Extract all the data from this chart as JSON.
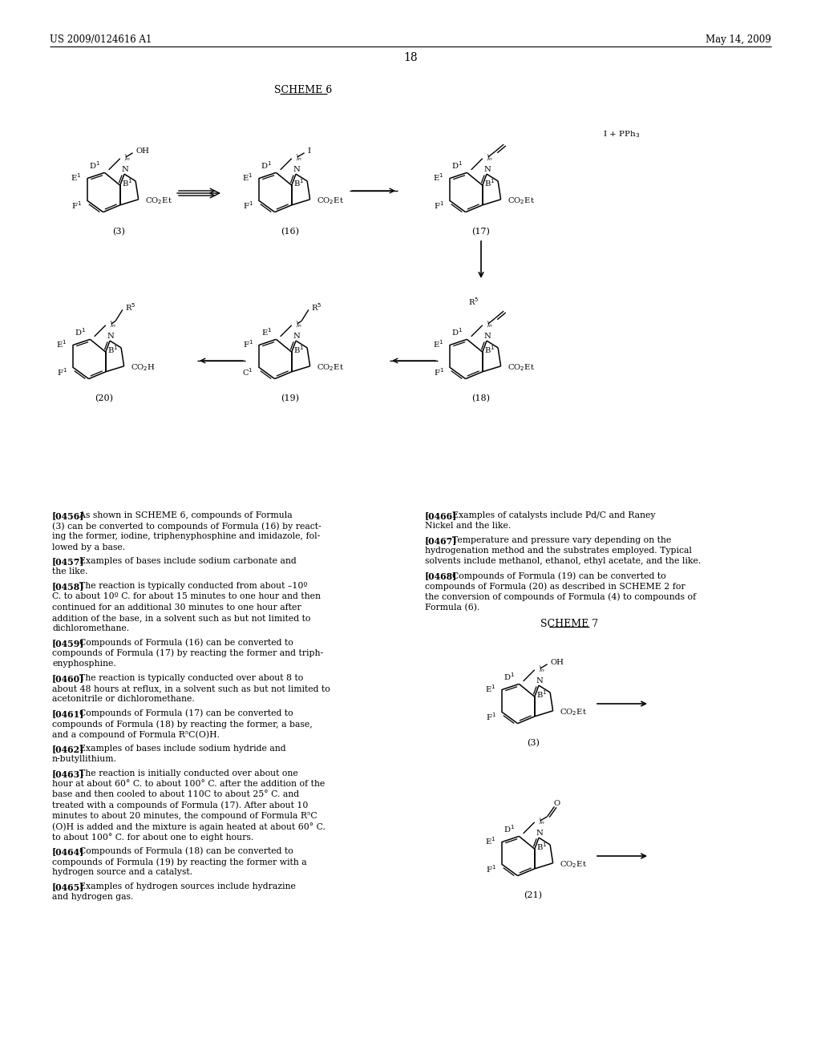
{
  "bg_color": "#ffffff",
  "header_left": "US 2009/0124616 A1",
  "header_right": "May 14, 2009",
  "page_num": "18",
  "scheme6_label": "SCHEME 6",
  "scheme7_label": "SCHEME 7",
  "fig_width": 10.24,
  "fig_height": 13.2,
  "dpi": 100,
  "left_col": [
    {
      "tag": "[0456]",
      "body": "  As shown in SCHEME 6, compounds of Formula\n(3) can be converted to compounds of Formula (16) by react-\ning the former, iodine, triphenyphosphine and imidazole, fol-\nlowed by a base."
    },
    {
      "tag": "[0457]",
      "body": "  Examples of bases include sodium carbonate and\nthe like."
    },
    {
      "tag": "[0458]",
      "body": "  The reaction is typically conducted from about –10º\nC. to about 10º C. for about 15 minutes to one hour and then\ncontinued for an additional 30 minutes to one hour after\naddition of the base, in a solvent such as but not limited to\ndichloromethane."
    },
    {
      "tag": "[0459]",
      "body": "  Compounds of Formula (16) can be converted to\ncompounds of Formula (17) by reacting the former and triph-\nenyphosphine."
    },
    {
      "tag": "[0460]",
      "body": "  The reaction is typically conducted over about 8 to\nabout 48 hours at reflux, in a solvent such as but not limited to\nacetonitrile or dichloromethane."
    },
    {
      "tag": "[0461]",
      "body": "  Compounds of Formula (17) can be converted to\ncompounds of Formula (18) by reacting the former, a base,\nand a compound of Formula R⁵C(O)H."
    },
    {
      "tag": "[0462]",
      "body": "  Examples of bases include sodium hydride and\nn-butyllithium."
    },
    {
      "tag": "[0463]",
      "body": "  The reaction is initially conducted over about one\nhour at about 60° C. to about 100° C. after the addition of the\nbase and then cooled to about 110C to about 25° C. and\ntreated with a compounds of Formula (17). After about 10\nminutes to about 20 minutes, the compound of Formula R⁵C\n(O)H is added and the mixture is again heated at about 60° C.\nto about 100° C. for about one to eight hours."
    },
    {
      "tag": "[0464]",
      "body": "  Compounds of Formula (18) can be converted to\ncompounds of Formula (19) by reacting the former with a\nhydrogen source and a catalyst."
    },
    {
      "tag": "[0465]",
      "body": "  Examples of hydrogen sources include hydrazine\nand hydrogen gas."
    }
  ],
  "right_col": [
    {
      "tag": "[0466]",
      "body": "  Examples of catalysts include Pd/C and Raney\nNickel and the like."
    },
    {
      "tag": "[0467]",
      "body": "  Temperature and pressure vary depending on the\nhydrogenation method and the substrates employed. Typical\nsolvents include methanol, ethanol, ethyl acetate, and the like."
    },
    {
      "tag": "[0468]",
      "body": "  Compounds of Formula (19) can be converted to\ncompounds of Formula (20) as described in SCHEME 2 for\nthe conversion of compounds of Formula (4) to compounds of\nFormula (6)."
    }
  ]
}
